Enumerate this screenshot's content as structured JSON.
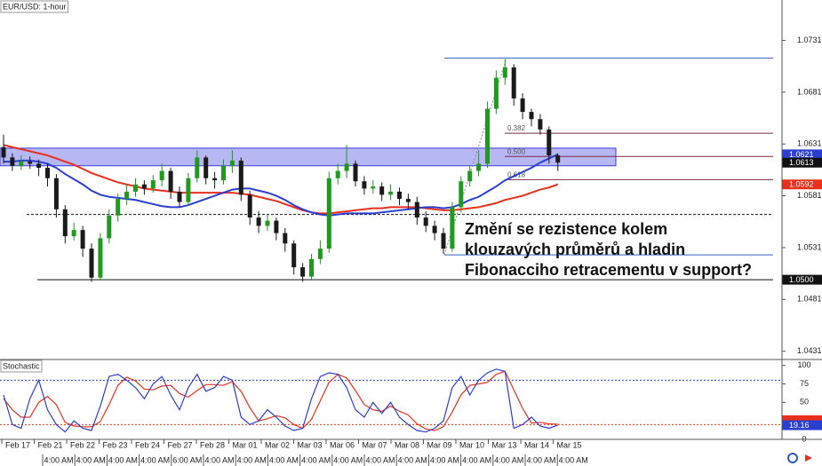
{
  "chart_data": [
    {
      "type": "candlestick",
      "title": "EUR/USD: 1-hour",
      "open": [
        1.0628,
        1.0618,
        1.061,
        1.0614,
        1.0612,
        1.0608,
        1.0598,
        1.0568,
        1.0542,
        1.0548,
        1.053,
        1.0502,
        1.054,
        1.0562,
        1.0578,
        1.0585,
        1.0592,
        1.0588,
        1.0596,
        1.0605,
        1.0585,
        1.0575,
        1.0598,
        1.0618,
        1.0598,
        1.0596,
        1.061,
        1.0615,
        1.0582,
        1.056,
        1.0552,
        1.0557,
        1.0545,
        1.0535,
        1.0512,
        1.0503,
        1.052,
        1.053,
        1.0598,
        1.0605,
        1.0612,
        1.0595,
        1.0588,
        1.059,
        1.0582,
        1.0585,
        1.0578,
        1.0575,
        1.056,
        1.0552,
        1.0545,
        1.053,
        1.057,
        1.0595,
        1.0605,
        1.0612,
        1.0665,
        1.0695,
        1.0705,
        1.0675,
        1.0662,
        1.0655,
        1.0645,
        1.062
      ],
      "high": [
        1.064,
        1.0622,
        1.062,
        1.0619,
        1.0616,
        1.0612,
        1.0602,
        1.0572,
        1.0555,
        1.0552,
        1.0535,
        1.0545,
        1.0568,
        1.0583,
        1.0592,
        1.0598,
        1.0596,
        1.0601,
        1.0612,
        1.0608,
        1.059,
        1.0603,
        1.0625,
        1.062,
        1.0604,
        1.0616,
        1.0625,
        1.0618,
        1.0586,
        1.0566,
        1.0563,
        1.056,
        1.055,
        1.0538,
        1.0516,
        1.0525,
        1.0538,
        1.0604,
        1.0612,
        1.063,
        1.0615,
        1.06,
        1.0596,
        1.0594,
        1.0592,
        1.0589,
        1.0583,
        1.058,
        1.0566,
        1.0557,
        1.055,
        1.0575,
        1.06,
        1.061,
        1.0625,
        1.0672,
        1.0702,
        1.0713,
        1.0708,
        1.068,
        1.0665,
        1.066,
        1.0648,
        1.0622
      ],
      "low": [
        1.0612,
        1.0605,
        1.0606,
        1.0607,
        1.06,
        1.059,
        1.056,
        1.0535,
        1.0538,
        1.0522,
        1.0498,
        1.05,
        1.0535,
        1.0556,
        1.0572,
        1.058,
        1.0582,
        1.0584,
        1.059,
        1.0578,
        1.057,
        1.0572,
        1.0594,
        1.0592,
        1.0588,
        1.0592,
        1.0603,
        1.0576,
        1.0553,
        1.0545,
        1.0547,
        1.0538,
        1.0527,
        1.0505,
        1.0498,
        1.05,
        1.0515,
        1.0526,
        1.0592,
        1.0598,
        1.059,
        1.0582,
        1.0583,
        1.0576,
        1.0577,
        1.0572,
        1.0568,
        1.0553,
        1.0546,
        1.0538,
        1.0525,
        1.0527,
        1.0565,
        1.059,
        1.06,
        1.0608,
        1.066,
        1.0688,
        1.0668,
        1.0655,
        1.0648,
        1.064,
        1.0612,
        1.0605
      ],
      "close": [
        1.0618,
        1.061,
        1.0614,
        1.0612,
        1.0608,
        1.0598,
        1.0568,
        1.0542,
        1.0548,
        1.053,
        1.0502,
        1.054,
        1.0562,
        1.0578,
        1.0585,
        1.0592,
        1.0588,
        1.0596,
        1.0605,
        1.0585,
        1.0575,
        1.0598,
        1.0618,
        1.0598,
        1.0596,
        1.061,
        1.0615,
        1.0582,
        1.056,
        1.0552,
        1.0557,
        1.0545,
        1.0535,
        1.0512,
        1.0503,
        1.052,
        1.053,
        1.0598,
        1.0605,
        1.0612,
        1.0595,
        1.0588,
        1.059,
        1.0582,
        1.0585,
        1.0578,
        1.0575,
        1.056,
        1.0552,
        1.0545,
        1.053,
        1.057,
        1.0595,
        1.0605,
        1.0612,
        1.0665,
        1.0695,
        1.0705,
        1.0675,
        1.0662,
        1.0655,
        1.0645,
        1.062,
        1.0613
      ],
      "up_color": "#1e9a1e",
      "down_color": "#1a1a1a",
      "moving_averages": [
        {
          "color": "#e8301c",
          "values": [
            1.063,
            1.0628,
            1.0626,
            1.0624,
            1.0622,
            1.062,
            1.0617,
            1.0614,
            1.0611,
            1.0607,
            1.0603,
            1.06,
            1.0597,
            1.0594,
            1.0592,
            1.059,
            1.0588,
            1.0587,
            1.0586,
            1.0585,
            1.0584,
            1.0584,
            1.0584,
            1.0584,
            1.0584,
            1.0584,
            1.0584,
            1.0583,
            1.0582,
            1.058,
            1.0578,
            1.0576,
            1.0573,
            1.057,
            1.0567,
            1.0565,
            1.0564,
            1.0564,
            1.0565,
            1.0566,
            1.0567,
            1.0568,
            1.0569,
            1.0569,
            1.057,
            1.057,
            1.057,
            1.057,
            1.0569,
            1.0568,
            1.0567,
            1.0567,
            1.0568,
            1.0569,
            1.057,
            1.0572,
            1.0574,
            1.0577,
            1.0579,
            1.0581,
            1.0584,
            1.0587,
            1.0589,
            1.0592
          ]
        },
        {
          "color": "#2a3fd0",
          "values": [
            1.0614,
            1.0614,
            1.0615,
            1.0615,
            1.0614,
            1.0612,
            1.0608,
            1.0602,
            1.0597,
            1.0592,
            1.0586,
            1.0582,
            1.058,
            1.0579,
            1.0578,
            1.0577,
            1.0575,
            1.0573,
            1.0571,
            1.057,
            1.057,
            1.0572,
            1.0575,
            1.0578,
            1.0581,
            1.0584,
            1.0587,
            1.0588,
            1.0588,
            1.0586,
            1.0584,
            1.0581,
            1.0577,
            1.0572,
            1.0568,
            1.0565,
            1.0563,
            1.0562,
            1.0563,
            1.0564,
            1.0564,
            1.0564,
            1.0564,
            1.0565,
            1.0566,
            1.0567,
            1.0568,
            1.0569,
            1.057,
            1.057,
            1.0569,
            1.057,
            1.0573,
            1.0577,
            1.058,
            1.0585,
            1.059,
            1.0596,
            1.06,
            1.0604,
            1.0608,
            1.0613,
            1.0617,
            1.0621
          ]
        }
      ],
      "ylim": [
        1.0423,
        1.077
      ],
      "yticks": [
        1.0431,
        1.0481,
        1.0531,
        1.0581,
        1.0631,
        1.0681,
        1.0731
      ],
      "zone": {
        "from": 1.061,
        "to": 1.0627,
        "color": "#7b7bea"
      },
      "h_lines": [
        {
          "value": 1.0563,
          "style": "dashed"
        },
        {
          "value": 1.05,
          "label": "1.0500",
          "style": "solid"
        }
      ],
      "fibonacci": {
        "high": 1.0714,
        "low": 1.0524,
        "edge_color": "#3461c4",
        "level_color": "#7a2848",
        "levels": [
          {
            "value": 0.382,
            "label": "0.382"
          },
          {
            "value": 0.5,
            "label": "0.500"
          },
          {
            "value": 0.618,
            "label": "0.618"
          }
        ]
      },
      "annotation": [
        "Změní se rezistence kolem",
        "klouzavých průměrů a hladin",
        "Fibonacciho retracementu v support?"
      ]
    },
    {
      "type": "line",
      "title": "Stochastic",
      "series": [
        {
          "color": "#e8301c",
          "values": [
            55,
            40,
            30,
            30,
            50,
            58,
            47,
            23,
            18,
            17,
            17,
            24,
            47,
            73,
            84,
            79,
            68,
            67,
            72,
            73,
            62,
            57,
            66,
            74,
            74,
            73,
            78,
            65,
            43,
            25,
            28,
            32,
            29,
            20,
            15,
            27,
            52,
            77,
            88,
            83,
            66,
            47,
            40,
            38,
            45,
            38,
            33,
            21,
            14,
            12,
            17,
            37,
            60,
            73,
            75,
            77,
            88,
            92,
            67,
            42,
            22,
            23,
            21,
            20.5
          ]
        },
        {
          "color": "#2a3fd0",
          "values": [
            60,
            20,
            15,
            55,
            80,
            40,
            20,
            10,
            25,
            15,
            12,
            45,
            85,
            88,
            80,
            70,
            55,
            75,
            85,
            60,
            40,
            70,
            88,
            65,
            70,
            85,
            80,
            30,
            20,
            25,
            40,
            30,
            18,
            12,
            15,
            55,
            85,
            90,
            88,
            70,
            40,
            30,
            50,
            35,
            50,
            30,
            20,
            12,
            10,
            15,
            25,
            70,
            85,
            60,
            80,
            90,
            95,
            92,
            15,
            20,
            30,
            18,
            15,
            19.16
          ]
        }
      ],
      "ylim": [
        0,
        108
      ],
      "yticks": [
        0,
        25,
        50,
        75,
        100
      ],
      "levels": [
        {
          "value": 80,
          "color": "#2a3fd0"
        },
        {
          "value": 20,
          "color": "#e8301c"
        }
      ],
      "x_axis": {
        "dates": [
          "Feb 17",
          "Feb 21",
          "Feb 22",
          "Feb 23",
          "Feb 24",
          "Feb 27",
          "Feb 28",
          "Mar 01",
          "Mar 02",
          "Mar 03",
          "Mar 06",
          "Mar 07",
          "Mar 08",
          "Mar 09",
          "Mar 10",
          "Mar 13",
          "Mar 14",
          "Mar 15"
        ],
        "times": [
          "4:00 AM",
          "4:00 AM",
          "4:00 AM",
          "4:00 AM",
          "6:00 AM",
          "4:00 AM",
          "4:00 AM",
          "4:00 AM",
          "4:00 AM",
          "4:00 AM",
          "4:00 AM",
          "4:00 AM",
          "4:00 AM",
          "4:00 AM",
          "4:00 AM",
          "4:00 AM",
          "4:00 AM"
        ]
      }
    }
  ]
}
